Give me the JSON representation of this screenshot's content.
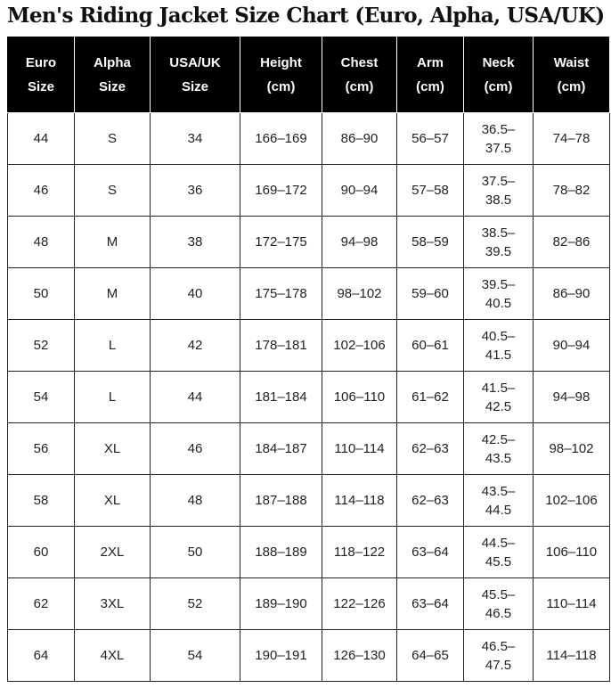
{
  "title": "Men's Riding Jacket Size Chart (Euro, Alpha, USA/UK)",
  "columns": [
    [
      "Euro",
      "Size"
    ],
    [
      "Alpha",
      "Size"
    ],
    [
      "USA/UK",
      "Size"
    ],
    [
      "Height",
      "(cm)"
    ],
    [
      "Chest",
      "(cm)"
    ],
    [
      "Arm",
      "(cm)"
    ],
    [
      "Neck",
      "(cm)"
    ],
    [
      "Waist",
      "(cm)"
    ]
  ],
  "rows": [
    [
      "44",
      "S",
      "34",
      "166–169",
      "86–90",
      "56–57",
      "36.5–37.5",
      "74–78"
    ],
    [
      "46",
      "S",
      "36",
      "169–172",
      "90–94",
      "57–58",
      "37.5–38.5",
      "78–82"
    ],
    [
      "48",
      "M",
      "38",
      "172–175",
      "94–98",
      "58–59",
      "38.5–39.5",
      "82–86"
    ],
    [
      "50",
      "M",
      "40",
      "175–178",
      "98–102",
      "59–60",
      "39.5–40.5",
      "86–90"
    ],
    [
      "52",
      "L",
      "42",
      "178–181",
      "102–106",
      "60–61",
      "40.5–41.5",
      "90–94"
    ],
    [
      "54",
      "L",
      "44",
      "181–184",
      "106–110",
      "61–62",
      "41.5–42.5",
      "94–98"
    ],
    [
      "56",
      "XL",
      "46",
      "184–187",
      "110–114",
      "62–63",
      "42.5–43.5",
      "98–102"
    ],
    [
      "58",
      "XL",
      "48",
      "187–188",
      "114–118",
      "62–63",
      "43.5–44.5",
      "102–106"
    ],
    [
      "60",
      "2XL",
      "50",
      "188–189",
      "118–122",
      "63–64",
      "44.5–45.5",
      "106–110"
    ],
    [
      "62",
      "3XL",
      "52",
      "189–190",
      "122–126",
      "63–64",
      "45.5–46.5",
      "110–114"
    ],
    [
      "64",
      "4XL",
      "54",
      "190–191",
      "126–130",
      "64–65",
      "46.5–47.5",
      "114–118"
    ]
  ]
}
